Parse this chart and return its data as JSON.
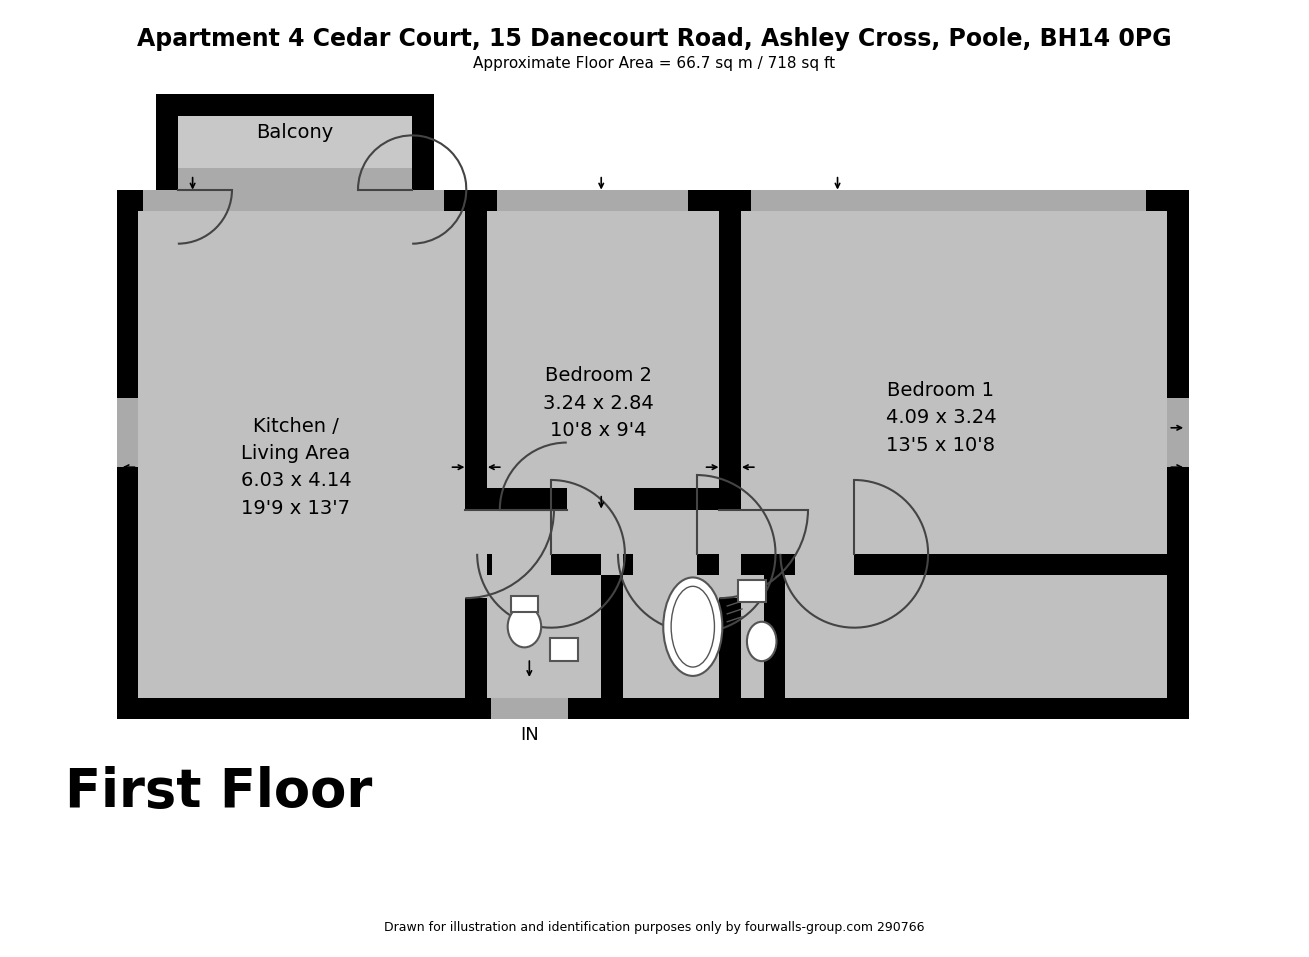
{
  "title": "Apartment 4 Cedar Court, 15 Danecourt Road, Ashley Cross, Poole, BH14 0PG",
  "subtitle": "Approximate Floor Area = 66.7 sq m / 718 sq ft",
  "floor_label": "First Floor",
  "footer": "Drawn for illustration and identification purposes only by fourwalls-group.com 290766",
  "wall_color": "#000000",
  "floor_color": "#c0c0c0",
  "balcony_color": "#c8c8c8",
  "bg_color": "#ffffff",
  "title_fontsize": 17,
  "subtitle_fontsize": 11,
  "label_fontsize": 14,
  "floor_label_fontsize": 38,
  "kitchen_label": "Kitchen /\nLiving Area\n6.03 x 4.14\n19'9 x 13'7",
  "bed2_label": "Bedroom 2\n3.24 x 2.84\n10'8 x 9'4",
  "bed1_label": "Bedroom 1\n4.09 x 3.24\n13'5 x 10'8",
  "balcony_label": "Balcony",
  "in_label": "IN"
}
